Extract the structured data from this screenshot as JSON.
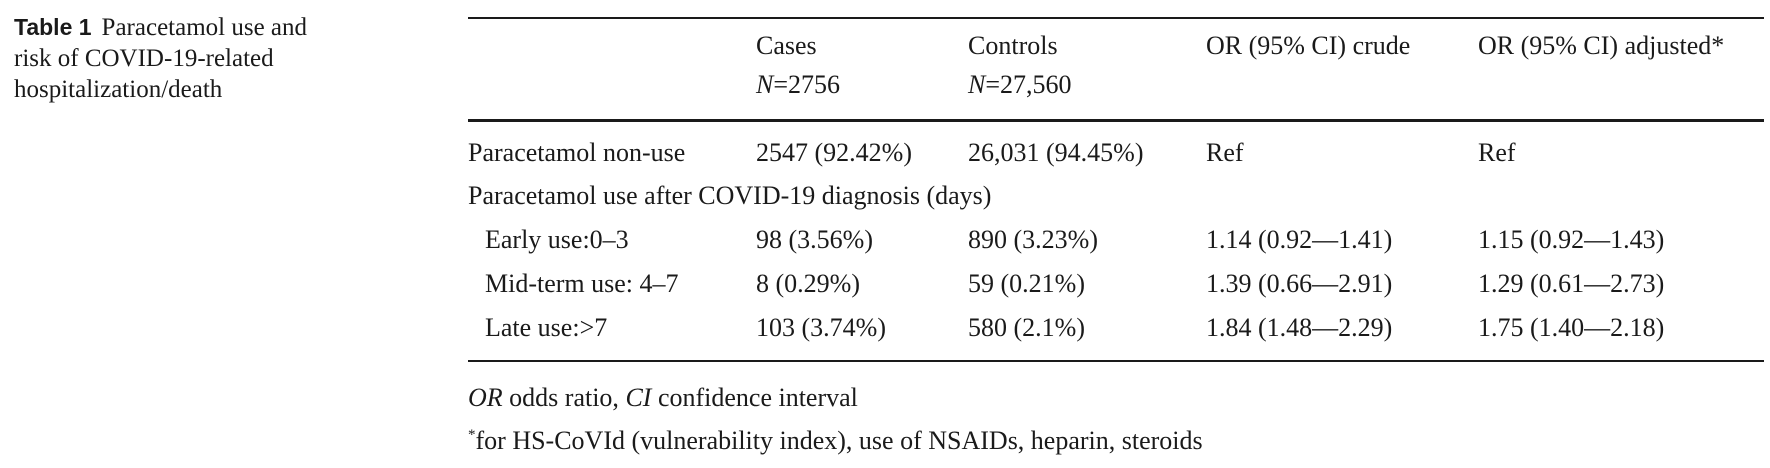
{
  "caption": {
    "label": "Table 1",
    "text": "Paracetamol use and risk of COVID-19-related hospitalization/death"
  },
  "table": {
    "headers": [
      {
        "line1": "",
        "line2": ""
      },
      {
        "line1": "Cases",
        "n_label": "N",
        "n_value": "=2756"
      },
      {
        "line1": "Controls",
        "n_label": "N",
        "n_value": "=27,560"
      },
      {
        "line1": "OR (95% CI) crude",
        "line2": ""
      },
      {
        "line1": "OR (95% CI) adjusted*",
        "line2": ""
      }
    ],
    "rows": [
      {
        "label": "Paracetamol non-use",
        "cases": "2547 (92.42%)",
        "controls": "26,031 (94.45%)",
        "crude": "Ref",
        "adjusted": "Ref"
      },
      {
        "label": "Paracetamol use after COVID-19 diagnosis (days)",
        "cases": "",
        "controls": "",
        "crude": "",
        "adjusted": ""
      },
      {
        "label": "Early use:0–3",
        "cases": "98 (3.56%)",
        "controls": "890 (3.23%)",
        "crude": "1.14 (0.92—1.41)",
        "adjusted": "1.15 (0.92—1.43)"
      },
      {
        "label": "Mid-term use: 4–7",
        "cases": "8 (0.29%)",
        "controls": "59 (0.21%)",
        "crude": "1.39 (0.66—2.91)",
        "adjusted": "1.29 (0.61—2.73)"
      },
      {
        "label": "Late use:>7",
        "cases": "103 (3.74%)",
        "controls": "580 (2.1%)",
        "crude": "1.84 (1.48—2.29)",
        "adjusted": "1.75 (1.40—2.18)"
      }
    ]
  },
  "footnotes": {
    "abbrev": {
      "or_abbr": "OR",
      "or_text": " odds ratio, ",
      "ci_abbr": "CI",
      "ci_text": " confidence interval"
    },
    "adjusted": {
      "marker": "*",
      "text": "for HS-CoVId (vulnerability index), use of NSAIDs, heparin, steroids"
    }
  }
}
